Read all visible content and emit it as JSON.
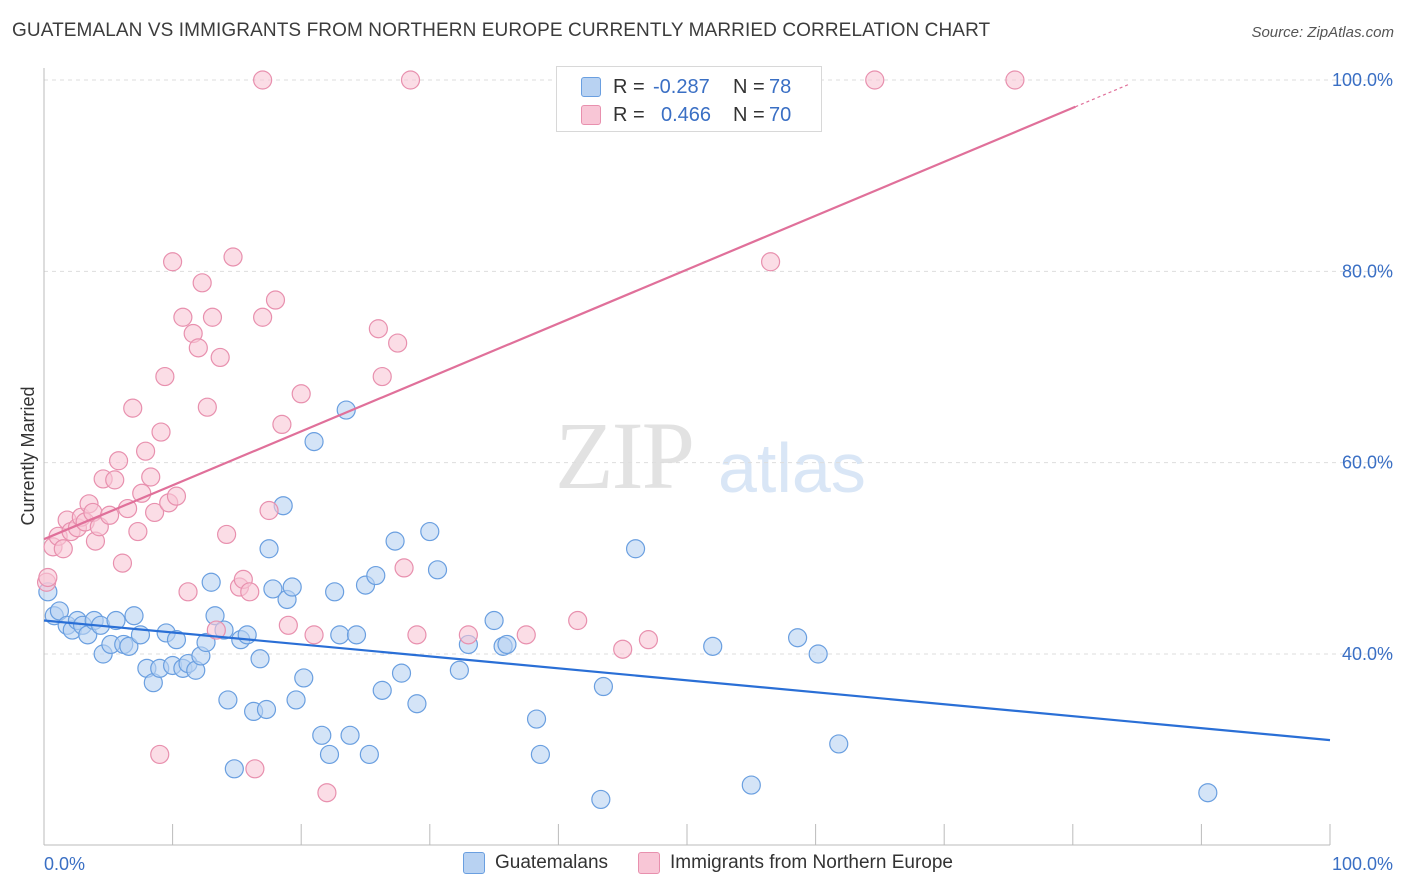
{
  "title": "GUATEMALAN VS IMMIGRANTS FROM NORTHERN EUROPE CURRENTLY MARRIED CORRELATION CHART",
  "source": "Source: ZipAtlas.com",
  "watermark": {
    "zip": "ZIP",
    "atlas": "atlas"
  },
  "legend_top": {
    "rows": [
      {
        "r_label": "R =",
        "r_value": "-0.287",
        "n_label": "N =",
        "n_value": "78"
      },
      {
        "r_label": "R =",
        "r_value": "0.466",
        "n_label": "N =",
        "n_value": "70"
      }
    ]
  },
  "legend_bottom": {
    "items": [
      "Guatemalans",
      "Immigrants from Northern Europe"
    ]
  },
  "colors": {
    "blue_fill": "#b8d2f2",
    "blue_stroke": "#6a9fe0",
    "blue_line": "#2a6fd6",
    "pink_fill": "#f8c6d6",
    "pink_stroke": "#e890ae",
    "pink_line": "#e0709a",
    "tick_color": "#3a6fc4",
    "grid": "#dddddd"
  },
  "chart_data": {
    "type": "scatter",
    "title": "GUATEMALAN VS IMMIGRANTS FROM NORTHERN EUROPE CURRENTLY MARRIED CORRELATION CHART",
    "xlabel": "",
    "ylabel": "Currently Married",
    "xlim": [
      0,
      100
    ],
    "ylim": [
      21,
      102
    ],
    "x_tick_labels": [
      "0.0%",
      "100.0%"
    ],
    "y_ticks": [
      40,
      60,
      80,
      100
    ],
    "y_tick_labels": [
      "40.0%",
      "60.0%",
      "80.0%",
      "100.0%"
    ],
    "grid": true,
    "legend_position": "top-center",
    "series": [
      {
        "name": "Guatemalans",
        "r": -0.287,
        "n": 78,
        "trend": {
          "x": [
            0,
            100
          ],
          "y": [
            43.5,
            31.0
          ]
        },
        "points": [
          [
            0.3,
            46.5
          ],
          [
            0.8,
            44.0
          ],
          [
            1.2,
            44.5
          ],
          [
            1.8,
            43.0
          ],
          [
            2.2,
            42.5
          ],
          [
            2.6,
            43.5
          ],
          [
            3.0,
            43.0
          ],
          [
            3.4,
            42.0
          ],
          [
            3.9,
            43.5
          ],
          [
            4.4,
            43.0
          ],
          [
            4.6,
            40.0
          ],
          [
            5.2,
            41.0
          ],
          [
            5.6,
            43.5
          ],
          [
            6.2,
            41.0
          ],
          [
            6.6,
            40.8
          ],
          [
            7.0,
            44.0
          ],
          [
            7.5,
            42.0
          ],
          [
            8.0,
            38.5
          ],
          [
            8.5,
            37.0
          ],
          [
            9.0,
            38.5
          ],
          [
            9.5,
            42.2
          ],
          [
            10.0,
            38.8
          ],
          [
            10.3,
            41.5
          ],
          [
            10.8,
            38.5
          ],
          [
            11.2,
            39.0
          ],
          [
            11.8,
            38.3
          ],
          [
            12.2,
            39.8
          ],
          [
            12.6,
            41.2
          ],
          [
            13.0,
            47.5
          ],
          [
            13.3,
            44.0
          ],
          [
            14.0,
            42.5
          ],
          [
            14.3,
            35.2
          ],
          [
            14.8,
            28.0
          ],
          [
            15.3,
            41.5
          ],
          [
            15.8,
            42.0
          ],
          [
            16.3,
            34.0
          ],
          [
            16.8,
            39.5
          ],
          [
            17.3,
            34.2
          ],
          [
            17.5,
            51.0
          ],
          [
            17.8,
            46.8
          ],
          [
            18.6,
            55.5
          ],
          [
            18.9,
            45.7
          ],
          [
            19.3,
            47.0
          ],
          [
            19.6,
            35.2
          ],
          [
            20.2,
            37.5
          ],
          [
            21.0,
            62.2
          ],
          [
            21.6,
            31.5
          ],
          [
            22.2,
            29.5
          ],
          [
            22.6,
            46.5
          ],
          [
            23.0,
            42.0
          ],
          [
            23.5,
            65.5
          ],
          [
            23.8,
            31.5
          ],
          [
            24.3,
            42.0
          ],
          [
            25.0,
            47.2
          ],
          [
            25.3,
            29.5
          ],
          [
            25.8,
            48.2
          ],
          [
            26.3,
            36.2
          ],
          [
            27.3,
            51.8
          ],
          [
            27.8,
            38.0
          ],
          [
            29.0,
            34.8
          ],
          [
            30.0,
            52.8
          ],
          [
            30.6,
            48.8
          ],
          [
            32.3,
            38.3
          ],
          [
            33.0,
            41.0
          ],
          [
            35.0,
            43.5
          ],
          [
            35.7,
            40.8
          ],
          [
            36.0,
            41.0
          ],
          [
            38.3,
            33.2
          ],
          [
            38.6,
            29.5
          ],
          [
            43.3,
            24.8
          ],
          [
            43.5,
            36.6
          ],
          [
            46.0,
            51.0
          ],
          [
            52.0,
            40.8
          ],
          [
            55.0,
            26.3
          ],
          [
            58.6,
            41.7
          ],
          [
            60.2,
            40.0
          ],
          [
            61.8,
            30.6
          ],
          [
            90.5,
            25.5
          ]
        ]
      },
      {
        "name": "Immigrants from Northern Europe",
        "r": 0.466,
        "n": 70,
        "trend": {
          "x": [
            0,
            80.2
          ],
          "y": [
            52.0,
            97.2
          ]
        },
        "points": [
          [
            0.2,
            47.5
          ],
          [
            0.3,
            48.0
          ],
          [
            0.7,
            51.2
          ],
          [
            1.1,
            52.3
          ],
          [
            1.5,
            51.0
          ],
          [
            1.8,
            54.0
          ],
          [
            2.1,
            52.8
          ],
          [
            2.6,
            53.2
          ],
          [
            2.9,
            54.3
          ],
          [
            3.2,
            53.8
          ],
          [
            3.5,
            55.7
          ],
          [
            3.8,
            54.8
          ],
          [
            4.0,
            51.8
          ],
          [
            4.3,
            53.3
          ],
          [
            4.6,
            58.3
          ],
          [
            5.1,
            54.5
          ],
          [
            5.5,
            58.2
          ],
          [
            5.8,
            60.2
          ],
          [
            6.1,
            49.5
          ],
          [
            6.5,
            55.2
          ],
          [
            6.9,
            65.7
          ],
          [
            7.3,
            52.8
          ],
          [
            7.6,
            56.8
          ],
          [
            7.9,
            61.2
          ],
          [
            8.3,
            58.5
          ],
          [
            8.6,
            54.8
          ],
          [
            9.1,
            63.2
          ],
          [
            9.4,
            69.0
          ],
          [
            9.7,
            55.8
          ],
          [
            10.0,
            81.0
          ],
          [
            10.3,
            56.5
          ],
          [
            10.8,
            75.2
          ],
          [
            11.2,
            46.5
          ],
          [
            11.6,
            73.5
          ],
          [
            12.0,
            72.0
          ],
          [
            12.3,
            78.8
          ],
          [
            12.7,
            65.8
          ],
          [
            13.1,
            75.2
          ],
          [
            13.4,
            42.5
          ],
          [
            13.7,
            71.0
          ],
          [
            14.2,
            52.5
          ],
          [
            14.7,
            81.5
          ],
          [
            15.2,
            47.0
          ],
          [
            15.5,
            47.8
          ],
          [
            16.0,
            46.5
          ],
          [
            16.4,
            28.0
          ],
          [
            17.0,
            75.2
          ],
          [
            17.5,
            55.0
          ],
          [
            18.0,
            77.0
          ],
          [
            18.5,
            64.0
          ],
          [
            19.0,
            43.0
          ],
          [
            20.0,
            67.2
          ],
          [
            21.0,
            42.0
          ],
          [
            22.0,
            25.5
          ],
          [
            26.0,
            74.0
          ],
          [
            26.3,
            69.0
          ],
          [
            27.5,
            72.5
          ],
          [
            28.0,
            49.0
          ],
          [
            29.0,
            42.0
          ],
          [
            33.0,
            42.0
          ],
          [
            37.5,
            42.0
          ],
          [
            41.5,
            43.5
          ],
          [
            45.0,
            40.5
          ],
          [
            47.0,
            41.5
          ],
          [
            56.5,
            81.0
          ],
          [
            64.6,
            100.0
          ],
          [
            9.0,
            29.5
          ],
          [
            17.0,
            100.0
          ],
          [
            28.5,
            100.0
          ],
          [
            75.5,
            100.0
          ]
        ]
      }
    ]
  }
}
